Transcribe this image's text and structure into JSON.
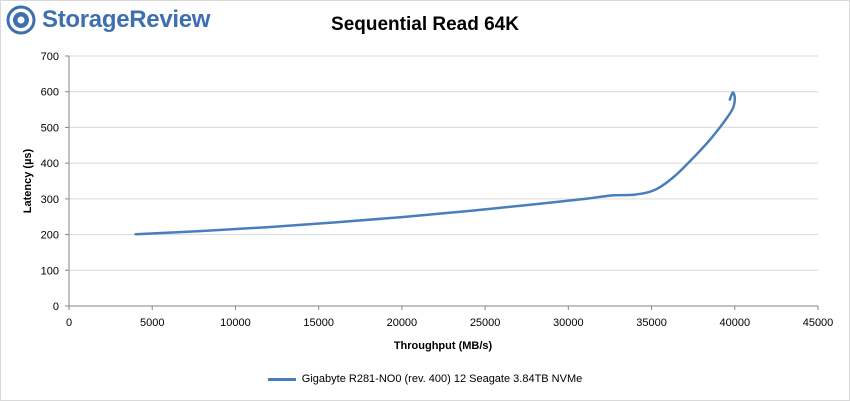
{
  "brand": {
    "name": "StorageReview",
    "icon": "storagereview-logo-icon",
    "color": "#3e6fae"
  },
  "chart_data": {
    "type": "line",
    "title": "Sequential Read 64K",
    "xlabel": "Throughput (MB/s)",
    "ylabel": "Latency (µs)",
    "xlim": [
      0,
      45000
    ],
    "ylim": [
      0,
      700
    ],
    "xticks": [
      0,
      5000,
      10000,
      15000,
      20000,
      25000,
      30000,
      35000,
      40000,
      45000
    ],
    "yticks": [
      0,
      100,
      200,
      300,
      400,
      500,
      600,
      700
    ],
    "grid": "horizontal",
    "legend_position": "bottom",
    "series": [
      {
        "name": "Gigabyte R281-NO0 (rev. 400) 12 Seagate 3.84TB NVMe",
        "color": "#4a7ebb",
        "points": [
          [
            4000,
            201
          ],
          [
            8000,
            210
          ],
          [
            12000,
            221
          ],
          [
            16000,
            234
          ],
          [
            20000,
            249
          ],
          [
            24000,
            266
          ],
          [
            28000,
            285
          ],
          [
            31000,
            300
          ],
          [
            32500,
            309
          ],
          [
            34000,
            312
          ],
          [
            35200,
            325
          ],
          [
            36300,
            360
          ],
          [
            37300,
            405
          ],
          [
            38500,
            465
          ],
          [
            39500,
            525
          ],
          [
            39900,
            555
          ],
          [
            40000,
            582
          ],
          [
            39900,
            598
          ],
          [
            39800,
            590
          ],
          [
            39700,
            578
          ]
        ]
      }
    ]
  }
}
